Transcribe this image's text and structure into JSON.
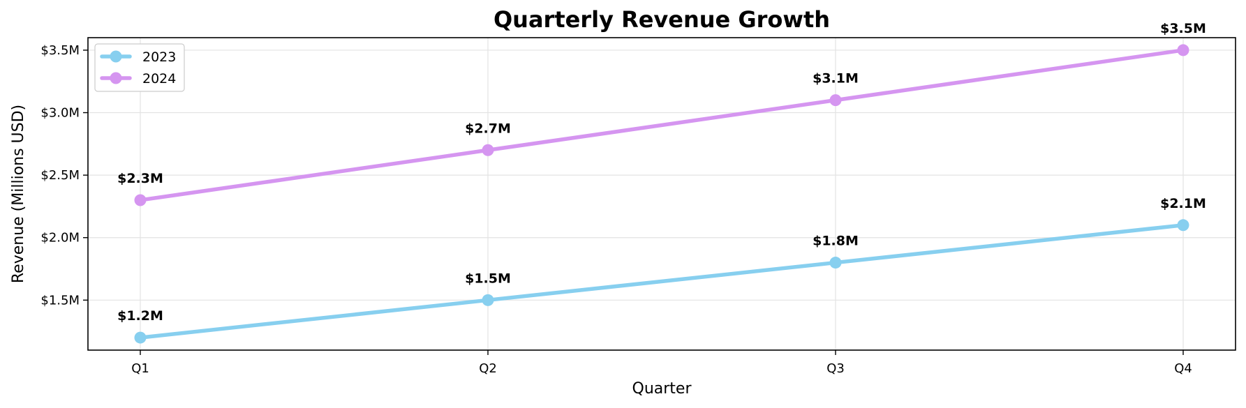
{
  "chart_data": {
    "type": "line",
    "title": "Quarterly Revenue Growth",
    "xlabel": "Quarter",
    "ylabel": "Revenue (Millions USD)",
    "categories": [
      "Q1",
      "Q2",
      "Q3",
      "Q4"
    ],
    "ylim": [
      1.1,
      3.6
    ],
    "yticks": [
      1.5,
      2.0,
      2.5,
      3.0,
      3.5
    ],
    "ytick_labels": [
      "$1.5M",
      "$2.0M",
      "$2.5M",
      "$3.0M",
      "$3.5M"
    ],
    "grid": true,
    "legend_position": "top-left",
    "series": [
      {
        "name": "2023",
        "color": "#87cfef",
        "values": [
          1.2,
          1.5,
          1.8,
          2.1
        ],
        "labels": [
          "$1.2M",
          "$1.5M",
          "$1.8M",
          "$2.1M"
        ]
      },
      {
        "name": "2024",
        "color": "#d595f0",
        "values": [
          2.3,
          2.7,
          3.1,
          3.5
        ],
        "labels": [
          "$2.3M",
          "$2.7M",
          "$3.1M",
          "$3.5M"
        ]
      }
    ]
  }
}
